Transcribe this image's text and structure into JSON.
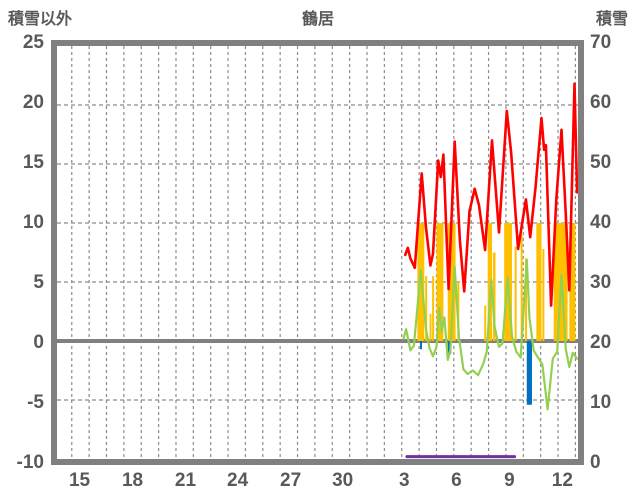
{
  "header": {
    "left_axis_title": "積雪以外",
    "chart_title": "鶴居",
    "right_axis_title": "積雪"
  },
  "chart_data": {
    "type": "line",
    "title": "鶴居",
    "legend": "none",
    "grid": "dashed gray, daily vertical lines, horizontal every 5 units, solid thick zero line",
    "x_axis": {
      "unit": "day of month",
      "tick_labels": [
        "15",
        "18",
        "21",
        "24",
        "27",
        "30",
        "3",
        "6",
        "9",
        "12"
      ],
      "tick_t": [
        1.3,
        4.35,
        7.4,
        10.4,
        13.45,
        16.45,
        20.0,
        23.0,
        26.05,
        29.1
      ],
      "range_t": [
        0,
        30
      ],
      "grid_start_t": 0.85,
      "grid_step_t": 1,
      "grid_count": 30
    },
    "y_left": {
      "title": "積雪以外",
      "min": -10,
      "max": 25,
      "ticks": [
        25,
        20,
        15,
        10,
        5,
        0,
        -5,
        -10
      ],
      "hgrid_values": [
        20,
        15,
        10,
        5,
        -5
      ],
      "zero_line_value": 0
    },
    "y_right": {
      "title": "積雪",
      "min": 0,
      "max": 70,
      "ticks": [
        70,
        60,
        50,
        40,
        30,
        20,
        10,
        0
      ]
    },
    "series": [
      {
        "name": "orange-bars",
        "type": "bars",
        "color": "#FFC000",
        "bars": [
          [
            20.75,
            21.15,
            10
          ],
          [
            21.2,
            21.3,
            5.5
          ],
          [
            21.45,
            21.55,
            2.3
          ],
          [
            21.6,
            21.7,
            5.5
          ],
          [
            21.85,
            22.25,
            10
          ],
          [
            22.5,
            22.95,
            10
          ],
          [
            23.05,
            23.15,
            5
          ],
          [
            24.6,
            24.7,
            3
          ],
          [
            24.8,
            25.05,
            10
          ],
          [
            25.1,
            25.25,
            7.5
          ],
          [
            25.75,
            26.2,
            10
          ],
          [
            26.35,
            26.45,
            8
          ],
          [
            26.7,
            26.8,
            9
          ],
          [
            26.95,
            27.05,
            7
          ],
          [
            27.6,
            27.9,
            10
          ],
          [
            27.95,
            28.05,
            7.8
          ],
          [
            28.6,
            29.4,
            10
          ],
          [
            29.5,
            29.85,
            10
          ]
        ]
      },
      {
        "name": "blue-bars",
        "type": "bars",
        "color": "#0070C0",
        "bars": [
          [
            20.9,
            21.0,
            -0.7
          ],
          [
            22.5,
            22.7,
            -1.1
          ],
          [
            27.05,
            27.35,
            -5.4
          ]
        ]
      },
      {
        "name": "purple-baseline",
        "type": "segment",
        "color": "#7030A0",
        "width": 3,
        "from": [
          20.15,
          -9.8
        ],
        "to": [
          26.35,
          -9.8
        ]
      },
      {
        "name": "green-line",
        "type": "line",
        "color": "#92D050",
        "width": 2.2,
        "points": [
          [
            19.95,
            0.2
          ],
          [
            20.1,
            1.0
          ],
          [
            20.35,
            -0.8
          ],
          [
            20.55,
            -0.4
          ],
          [
            20.95,
            6.0
          ],
          [
            21.25,
            1.0
          ],
          [
            21.45,
            -0.6
          ],
          [
            21.65,
            -1.3
          ],
          [
            21.85,
            -0.5
          ],
          [
            22.0,
            2.8
          ],
          [
            22.15,
            0.8
          ],
          [
            22.3,
            2.0
          ],
          [
            22.5,
            -1.6
          ],
          [
            22.65,
            -0.8
          ],
          [
            22.9,
            6.3
          ],
          [
            23.15,
            0.3
          ],
          [
            23.4,
            -2.4
          ],
          [
            23.65,
            -2.8
          ],
          [
            23.95,
            -2.5
          ],
          [
            24.25,
            -2.9
          ],
          [
            24.55,
            -1.9
          ],
          [
            24.75,
            -0.9
          ],
          [
            25.0,
            5.2
          ],
          [
            25.2,
            1.2
          ],
          [
            25.45,
            -0.5
          ],
          [
            25.65,
            -0.2
          ],
          [
            25.95,
            5.4
          ],
          [
            26.2,
            0.4
          ],
          [
            26.45,
            -0.9
          ],
          [
            26.7,
            -1.4
          ],
          [
            27.05,
            6.9
          ],
          [
            27.2,
            2.0
          ],
          [
            27.45,
            -0.8
          ],
          [
            27.65,
            -1.3
          ],
          [
            27.95,
            -2.0
          ],
          [
            28.25,
            -5.8
          ],
          [
            28.55,
            -1.5
          ],
          [
            28.8,
            -0.9
          ],
          [
            29.05,
            5.6
          ],
          [
            29.3,
            -0.7
          ],
          [
            29.5,
            -2.2
          ],
          [
            29.7,
            -1.0
          ],
          [
            29.95,
            -1.5
          ]
        ]
      },
      {
        "name": "red-line",
        "type": "line",
        "color": "#FF0000",
        "width": 2.6,
        "points": [
          [
            20.05,
            7.3
          ],
          [
            20.2,
            7.9
          ],
          [
            20.35,
            7.0
          ],
          [
            20.6,
            6.2
          ],
          [
            21.0,
            14.2
          ],
          [
            21.25,
            9.6
          ],
          [
            21.5,
            6.4
          ],
          [
            21.65,
            7.4
          ],
          [
            21.95,
            15.3
          ],
          [
            22.1,
            13.9
          ],
          [
            22.25,
            15.8
          ],
          [
            22.55,
            4.4
          ],
          [
            22.9,
            16.9
          ],
          [
            23.2,
            8.5
          ],
          [
            23.45,
            4.2
          ],
          [
            23.75,
            11.0
          ],
          [
            24.05,
            12.9
          ],
          [
            24.3,
            11.5
          ],
          [
            24.65,
            7.7
          ],
          [
            25.05,
            17.0
          ],
          [
            25.45,
            9.2
          ],
          [
            25.9,
            19.5
          ],
          [
            26.15,
            16.0
          ],
          [
            26.55,
            7.8
          ],
          [
            27.0,
            12.0
          ],
          [
            27.25,
            8.8
          ],
          [
            27.55,
            13.0
          ],
          [
            27.9,
            18.9
          ],
          [
            28.05,
            16.2
          ],
          [
            28.15,
            16.6
          ],
          [
            28.45,
            3.0
          ],
          [
            28.75,
            12.0
          ],
          [
            29.05,
            17.9
          ],
          [
            29.3,
            10.7
          ],
          [
            29.5,
            4.3
          ],
          [
            29.8,
            21.8
          ],
          [
            29.95,
            12.6
          ]
        ]
      }
    ],
    "colors": {
      "text": "#595959",
      "frame": "#808080",
      "grid": "#8C8C8C",
      "zero_line": "#808080",
      "red_series": "#FF0000",
      "green_series": "#92D050",
      "orange_series": "#FFC000",
      "blue_series": "#0070C0",
      "purple_series": "#7030A0"
    }
  }
}
